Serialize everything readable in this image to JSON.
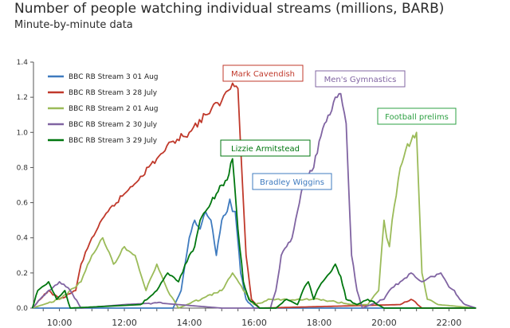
{
  "title": "Number of people watching individual streams (millions, BARB)",
  "subtitle": "Minute-by-minute data",
  "chart_data": {
    "type": "line",
    "xlim": [
      "09:12",
      "22:48"
    ],
    "ylim": [
      0,
      1.4
    ],
    "yticks": [
      "0.0",
      "0.2",
      "0.4",
      "0.6",
      "0.8",
      "1.0",
      "1.2",
      "1.4"
    ],
    "xticks": [
      "10:00",
      "12:00",
      "14:00",
      "16:00",
      "18:00",
      "20:00",
      "22:00"
    ],
    "grid": false,
    "legend_position": "top-left",
    "series": [
      {
        "name": "BBC RB Stream 3 01 Aug",
        "color": "#3f7bbf",
        "points": [
          [
            "09:10",
            0.0
          ],
          [
            "13:30",
            0.0
          ],
          [
            "13:45",
            0.1
          ],
          [
            "14:00",
            0.4
          ],
          [
            "14:10",
            0.5
          ],
          [
            "14:20",
            0.45
          ],
          [
            "14:30",
            0.55
          ],
          [
            "14:40",
            0.5
          ],
          [
            "14:50",
            0.3
          ],
          [
            "15:00",
            0.5
          ],
          [
            "15:10",
            0.55
          ],
          [
            "15:15",
            0.62
          ],
          [
            "15:20",
            0.55
          ],
          [
            "15:25",
            0.55
          ],
          [
            "15:35",
            0.2
          ],
          [
            "15:45",
            0.05
          ],
          [
            "16:00",
            0.0
          ],
          [
            "22:50",
            0.0
          ]
        ]
      },
      {
        "name": "BBC RB Stream 3 28 July",
        "color": "#c0392b",
        "points": [
          [
            "09:10",
            0.0
          ],
          [
            "09:40",
            0.1
          ],
          [
            "10:00",
            0.05
          ],
          [
            "10:30",
            0.1
          ],
          [
            "10:40",
            0.25
          ],
          [
            "11:00",
            0.4
          ],
          [
            "11:30",
            0.55
          ],
          [
            "12:00",
            0.65
          ],
          [
            "12:30",
            0.75
          ],
          [
            "13:00",
            0.85
          ],
          [
            "13:30",
            0.95
          ],
          [
            "14:00",
            1.0
          ],
          [
            "14:30",
            1.1
          ],
          [
            "15:00",
            1.18
          ],
          [
            "15:20",
            1.28
          ],
          [
            "15:30",
            1.25
          ],
          [
            "15:45",
            0.3
          ],
          [
            "15:55",
            0.05
          ],
          [
            "16:10",
            0.0
          ],
          [
            "20:30",
            0.02
          ],
          [
            "20:50",
            0.05
          ],
          [
            "21:10",
            0.0
          ],
          [
            "22:50",
            0.0
          ]
        ]
      },
      {
        "name": "BBC RB Stream 2 01 Aug",
        "color": "#9bbb59",
        "points": [
          [
            "09:10",
            0.0
          ],
          [
            "10:00",
            0.05
          ],
          [
            "10:40",
            0.15
          ],
          [
            "11:00",
            0.3
          ],
          [
            "11:20",
            0.4
          ],
          [
            "11:40",
            0.25
          ],
          [
            "12:00",
            0.35
          ],
          [
            "12:20",
            0.3
          ],
          [
            "12:40",
            0.1
          ],
          [
            "13:00",
            0.25
          ],
          [
            "13:20",
            0.1
          ],
          [
            "13:40",
            0.0
          ],
          [
            "15:00",
            0.1
          ],
          [
            "15:20",
            0.2
          ],
          [
            "15:40",
            0.1
          ],
          [
            "16:00",
            0.02
          ],
          [
            "16:30",
            0.05
          ],
          [
            "18:00",
            0.05
          ],
          [
            "19:00",
            0.02
          ],
          [
            "19:30",
            0.02
          ],
          [
            "19:50",
            0.1
          ],
          [
            "20:00",
            0.5
          ],
          [
            "20:05",
            0.4
          ],
          [
            "20:10",
            0.35
          ],
          [
            "20:15",
            0.5
          ],
          [
            "20:30",
            0.8
          ],
          [
            "20:40",
            0.9
          ],
          [
            "20:50",
            0.95
          ],
          [
            "21:00",
            1.0
          ],
          [
            "21:05",
            0.6
          ],
          [
            "21:10",
            0.2
          ],
          [
            "21:20",
            0.05
          ],
          [
            "21:40",
            0.02
          ],
          [
            "22:50",
            0.0
          ]
        ]
      },
      {
        "name": "BBC RB Stream 2 30 July",
        "color": "#8064a2",
        "points": [
          [
            "09:10",
            0.0
          ],
          [
            "09:40",
            0.1
          ],
          [
            "10:00",
            0.15
          ],
          [
            "10:20",
            0.1
          ],
          [
            "10:40",
            0.0
          ],
          [
            "12:00",
            0.02
          ],
          [
            "13:00",
            0.03
          ],
          [
            "15:00",
            0.0
          ],
          [
            "16:30",
            0.0
          ],
          [
            "16:40",
            0.1
          ],
          [
            "16:50",
            0.3
          ],
          [
            "17:00",
            0.35
          ],
          [
            "17:10",
            0.4
          ],
          [
            "17:20",
            0.55
          ],
          [
            "17:30",
            0.7
          ],
          [
            "17:40",
            0.75
          ],
          [
            "17:50",
            0.8
          ],
          [
            "18:00",
            0.95
          ],
          [
            "18:10",
            1.05
          ],
          [
            "18:20",
            1.1
          ],
          [
            "18:30",
            1.2
          ],
          [
            "18:40",
            1.22
          ],
          [
            "18:50",
            1.05
          ],
          [
            "19:00",
            0.3
          ],
          [
            "19:10",
            0.1
          ],
          [
            "19:20",
            0.0
          ],
          [
            "20:00",
            0.05
          ],
          [
            "20:10",
            0.1
          ],
          [
            "20:30",
            0.15
          ],
          [
            "20:50",
            0.2
          ],
          [
            "21:10",
            0.15
          ],
          [
            "21:30",
            0.18
          ],
          [
            "21:45",
            0.2
          ],
          [
            "22:00",
            0.12
          ],
          [
            "22:10",
            0.1
          ],
          [
            "22:20",
            0.05
          ],
          [
            "22:30",
            0.02
          ],
          [
            "22:50",
            0.0
          ]
        ]
      },
      {
        "name": "BBC RB Stream 3 29 July",
        "color": "#00770f",
        "points": [
          [
            "09:10",
            0.0
          ],
          [
            "09:20",
            0.1
          ],
          [
            "09:40",
            0.15
          ],
          [
            "09:55",
            0.05
          ],
          [
            "10:10",
            0.1
          ],
          [
            "10:20",
            0.0
          ],
          [
            "12:30",
            0.02
          ],
          [
            "13:00",
            0.1
          ],
          [
            "13:20",
            0.2
          ],
          [
            "13:40",
            0.15
          ],
          [
            "14:00",
            0.3
          ],
          [
            "14:10",
            0.35
          ],
          [
            "14:20",
            0.5
          ],
          [
            "14:30",
            0.55
          ],
          [
            "14:40",
            0.6
          ],
          [
            "14:50",
            0.65
          ],
          [
            "15:00",
            0.7
          ],
          [
            "15:10",
            0.73
          ],
          [
            "15:20",
            0.85
          ],
          [
            "15:30",
            0.45
          ],
          [
            "15:40",
            0.15
          ],
          [
            "15:50",
            0.05
          ],
          [
            "16:10",
            0.0
          ],
          [
            "16:40",
            0.0
          ],
          [
            "17:00",
            0.05
          ],
          [
            "17:20",
            0.02
          ],
          [
            "17:30",
            0.1
          ],
          [
            "17:40",
            0.15
          ],
          [
            "17:50",
            0.05
          ],
          [
            "18:00",
            0.12
          ],
          [
            "18:20",
            0.2
          ],
          [
            "18:30",
            0.25
          ],
          [
            "18:40",
            0.18
          ],
          [
            "18:50",
            0.05
          ],
          [
            "19:10",
            0.02
          ],
          [
            "19:30",
            0.05
          ],
          [
            "20:00",
            0.0
          ],
          [
            "22:50",
            0.0
          ]
        ]
      }
    ],
    "annotations": [
      {
        "text": "Mark Cavendish",
        "color": "#c0392b"
      },
      {
        "text": "Men's Gymnastics",
        "color": "#8064a2"
      },
      {
        "text": "Football prelims",
        "color": "#2ea043"
      },
      {
        "text": "Lizzie Armitstead",
        "color": "#00770f"
      },
      {
        "text": "Bradley Wiggins",
        "color": "#3f7bbf"
      }
    ]
  }
}
